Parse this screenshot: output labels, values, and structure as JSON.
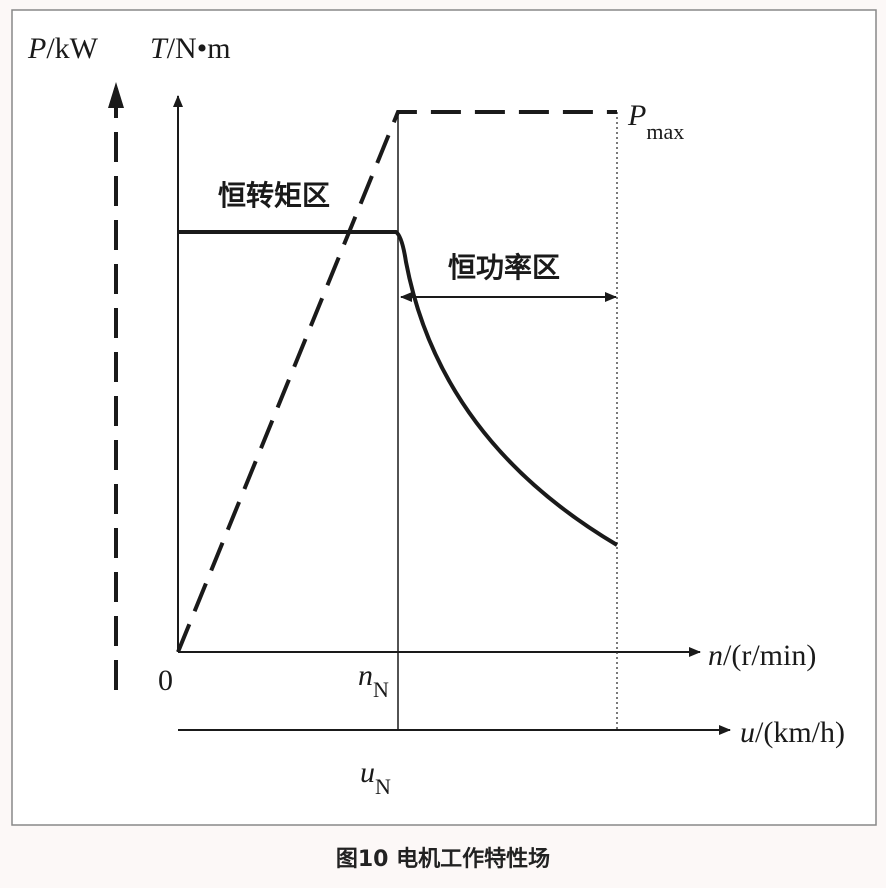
{
  "diagram": {
    "p_axis": {
      "symbol": "P",
      "unit": "/kW"
    },
    "t_axis": {
      "symbol": "T",
      "unit": "/N•m"
    },
    "p_max": {
      "symbol": "P",
      "subscript": "max"
    },
    "constant_torque_region": "恒转矩区",
    "constant_power_region": "恒功率区",
    "origin": "0",
    "n_rated": {
      "symbol": "n",
      "subscript": "N"
    },
    "u_rated": {
      "symbol": "u",
      "subscript": "N"
    },
    "n_axis": {
      "symbol": "n",
      "unit": "/(r/min)"
    },
    "u_axis": {
      "symbol": "u",
      "unit": "/(km/h)"
    },
    "caption": "图10 电机工作特性场"
  }
}
